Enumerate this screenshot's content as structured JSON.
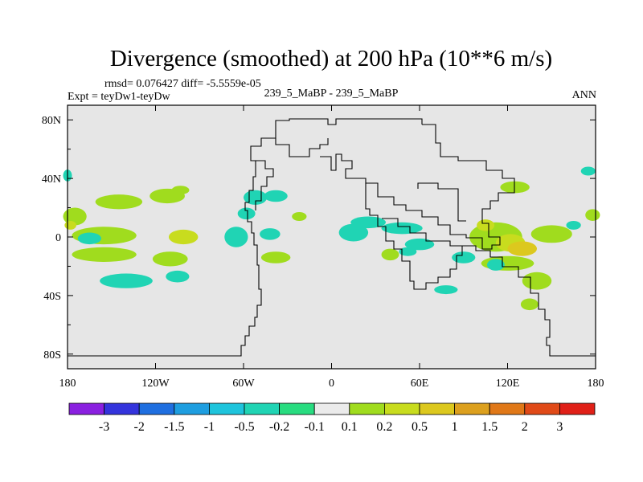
{
  "chart_data": {
    "type": "heatmap",
    "title": "Divergence (smoothed) at 200 hPa (10**6 m/s)",
    "stats_line": "rmsd= 0.076427 diff= -5.5559e-05",
    "expt_line": "Expt = teyDw1-teyDw",
    "case_line": "239_5_MaBP - 239_5_MaBP",
    "season": "ANN",
    "x_ticks": [
      "180",
      "120W",
      "60W",
      "0",
      "60E",
      "120E",
      "180"
    ],
    "y_ticks": [
      "80N",
      "40N",
      "0",
      "40S",
      "80S"
    ],
    "xlim": [
      -180,
      180
    ],
    "ylim": [
      -90,
      90
    ],
    "colorbar": {
      "labels": [
        "-3",
        "-2",
        "-1.5",
        "-1",
        "-0.5",
        "-0.2",
        "-0.1",
        "0.1",
        "0.2",
        "0.5",
        "1",
        "1.5",
        "2",
        "3"
      ],
      "colors": [
        "#8a20e0",
        "#3434dc",
        "#1f6fe0",
        "#1e9ee0",
        "#1ec4dc",
        "#20d4b4",
        "#28dc80",
        "#ebebeb",
        "#a0dc1e",
        "#c8dc1e",
        "#dcc81e",
        "#dca01e",
        "#e07818",
        "#e04a18",
        "#e02018"
      ]
    },
    "ocean_color": "#e6e6e6",
    "anomalies": [
      {
        "lon": -175,
        "lat": 14,
        "rx": 8,
        "ry": 6,
        "value": 0.2
      },
      {
        "lon": -178,
        "lat": 8,
        "rx": 4,
        "ry": 3,
        "value": 0.5
      },
      {
        "lon": -145,
        "lat": 24,
        "rx": 16,
        "ry": 5,
        "value": 0.2
      },
      {
        "lon": -112,
        "lat": 28,
        "rx": 12,
        "ry": 5,
        "value": 0.2
      },
      {
        "lon": -103,
        "lat": 32,
        "rx": 6,
        "ry": 3,
        "value": 0.2
      },
      {
        "lon": -155,
        "lat": 1,
        "rx": 22,
        "ry": 6,
        "value": 0.2
      },
      {
        "lon": -165,
        "lat": -1,
        "rx": 8,
        "ry": 4,
        "value": -0.2
      },
      {
        "lon": -101,
        "lat": 0,
        "rx": 10,
        "ry": 5,
        "value": 0.5
      },
      {
        "lon": -155,
        "lat": -12,
        "rx": 22,
        "ry": 5,
        "value": 0.2
      },
      {
        "lon": -110,
        "lat": -15,
        "rx": 12,
        "ry": 5,
        "value": 0.2
      },
      {
        "lon": -140,
        "lat": -30,
        "rx": 18,
        "ry": 5,
        "value": -0.2
      },
      {
        "lon": -105,
        "lat": -27,
        "rx": 8,
        "ry": 4,
        "value": -0.2
      },
      {
        "lon": -65,
        "lat": 0,
        "rx": 8,
        "ry": 7,
        "value": -0.2
      },
      {
        "lon": -52,
        "lat": 27,
        "rx": 8,
        "ry": 5,
        "value": -0.2
      },
      {
        "lon": -38,
        "lat": 28,
        "rx": 8,
        "ry": 4,
        "value": -0.2
      },
      {
        "lon": -58,
        "lat": 16,
        "rx": 6,
        "ry": 4,
        "value": -0.2
      },
      {
        "lon": -42,
        "lat": 2,
        "rx": 7,
        "ry": 4,
        "value": -0.2
      },
      {
        "lon": -38,
        "lat": -14,
        "rx": 10,
        "ry": 4,
        "value": 0.2
      },
      {
        "lon": -22,
        "lat": 14,
        "rx": 5,
        "ry": 3,
        "value": 0.2
      },
      {
        "lon": 15,
        "lat": 3,
        "rx": 10,
        "ry": 6,
        "value": -0.2
      },
      {
        "lon": 25,
        "lat": 10,
        "rx": 12,
        "ry": 4,
        "value": -0.2
      },
      {
        "lon": 48,
        "lat": 6,
        "rx": 14,
        "ry": 4,
        "value": -0.2
      },
      {
        "lon": 60,
        "lat": -5,
        "rx": 10,
        "ry": 4,
        "value": -0.2
      },
      {
        "lon": 40,
        "lat": -12,
        "rx": 6,
        "ry": 4,
        "value": 0.2
      },
      {
        "lon": 52,
        "lat": -10,
        "rx": 6,
        "ry": 3,
        "value": -0.2
      },
      {
        "lon": 112,
        "lat": 0,
        "rx": 18,
        "ry": 10,
        "value": 0.2
      },
      {
        "lon": 122,
        "lat": -4,
        "rx": 10,
        "ry": 6,
        "value": 0.5
      },
      {
        "lon": 130,
        "lat": -8,
        "rx": 10,
        "ry": 5,
        "value": 1
      },
      {
        "lon": 150,
        "lat": 2,
        "rx": 14,
        "ry": 6,
        "value": 0.2
      },
      {
        "lon": 105,
        "lat": 8,
        "rx": 6,
        "ry": 4,
        "value": 0.5
      },
      {
        "lon": 120,
        "lat": -18,
        "rx": 18,
        "ry": 5,
        "value": 0.2
      },
      {
        "lon": 112,
        "lat": -19,
        "rx": 6,
        "ry": 4,
        "value": -0.2
      },
      {
        "lon": 90,
        "lat": -14,
        "rx": 8,
        "ry": 4,
        "value": -0.2
      },
      {
        "lon": 140,
        "lat": -30,
        "rx": 10,
        "ry": 6,
        "value": 0.2
      },
      {
        "lon": 125,
        "lat": 34,
        "rx": 10,
        "ry": 4,
        "value": 0.2
      },
      {
        "lon": 165,
        "lat": 8,
        "rx": 5,
        "ry": 3,
        "value": -0.2
      },
      {
        "lon": 178,
        "lat": 15,
        "rx": 5,
        "ry": 4,
        "value": 0.2
      },
      {
        "lon": 175,
        "lat": 45,
        "rx": 5,
        "ry": 3,
        "value": -0.2
      },
      {
        "lon": 78,
        "lat": -36,
        "rx": 8,
        "ry": 3,
        "value": -0.2
      },
      {
        "lon": 135,
        "lat": -46,
        "rx": 6,
        "ry": 4,
        "value": 0.2
      },
      {
        "lon": -180,
        "lat": 42,
        "rx": 3,
        "ry": 4,
        "value": -0.2
      }
    ]
  }
}
